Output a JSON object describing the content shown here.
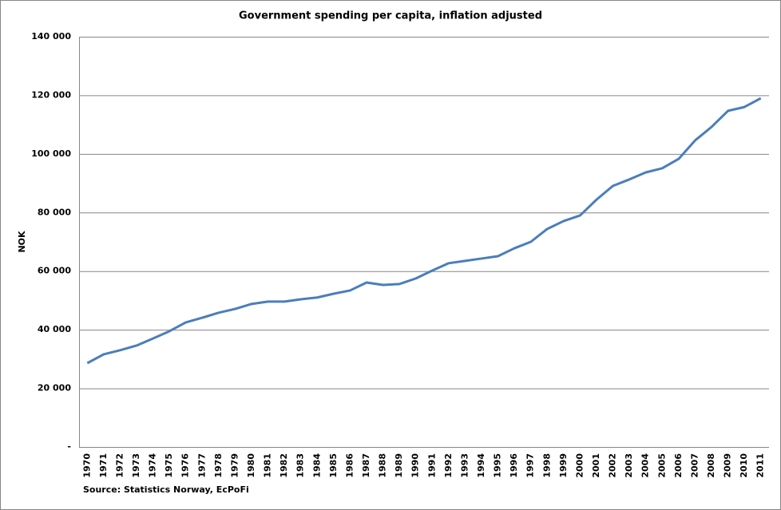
{
  "chart_data": {
    "type": "line",
    "title": "Government spending per capita, inflation adjusted",
    "y_label": "NOK",
    "source": "Source: Statistics Norway, EcPoFi",
    "categories": [
      "1970",
      "1971",
      "1972",
      "1973",
      "1974",
      "1975",
      "1976",
      "1977",
      "1978",
      "1979",
      "1980",
      "1981",
      "1982",
      "1983",
      "1984",
      "1985",
      "1986",
      "1987",
      "1988",
      "1989",
      "1990",
      "1991",
      "1992",
      "1993",
      "1994",
      "1995",
      "1996",
      "1997",
      "1998",
      "1999",
      "2000",
      "2001",
      "2002",
      "2003",
      "2004",
      "2005",
      "2006",
      "2007",
      "2008",
      "2009",
      "2010",
      "2011"
    ],
    "values": [
      28600,
      31600,
      33000,
      34600,
      37000,
      39500,
      42500,
      44100,
      45800,
      47100,
      48800,
      49600,
      49600,
      50400,
      51000,
      52300,
      53400,
      56100,
      55300,
      55600,
      57500,
      60200,
      62700,
      63500,
      64300,
      65100,
      67800,
      70000,
      74400,
      77100,
      79000,
      84400,
      89100,
      91300,
      93700,
      95100,
      98300,
      104600,
      109200,
      114700,
      116000,
      119000
    ],
    "color": "#4a7ebb",
    "ylim": [
      0,
      140000
    ],
    "yticks": [
      {
        "value": 0,
        "label": "-"
      },
      {
        "value": 20000,
        "label": "20 000"
      },
      {
        "value": 40000,
        "label": "40 000"
      },
      {
        "value": 60000,
        "label": "60 000"
      },
      {
        "value": 80000,
        "label": "80 000"
      },
      {
        "value": 100000,
        "label": "100 000"
      },
      {
        "value": 120000,
        "label": "120 000"
      },
      {
        "value": 140000,
        "label": "140 000"
      }
    ],
    "grid": true
  }
}
